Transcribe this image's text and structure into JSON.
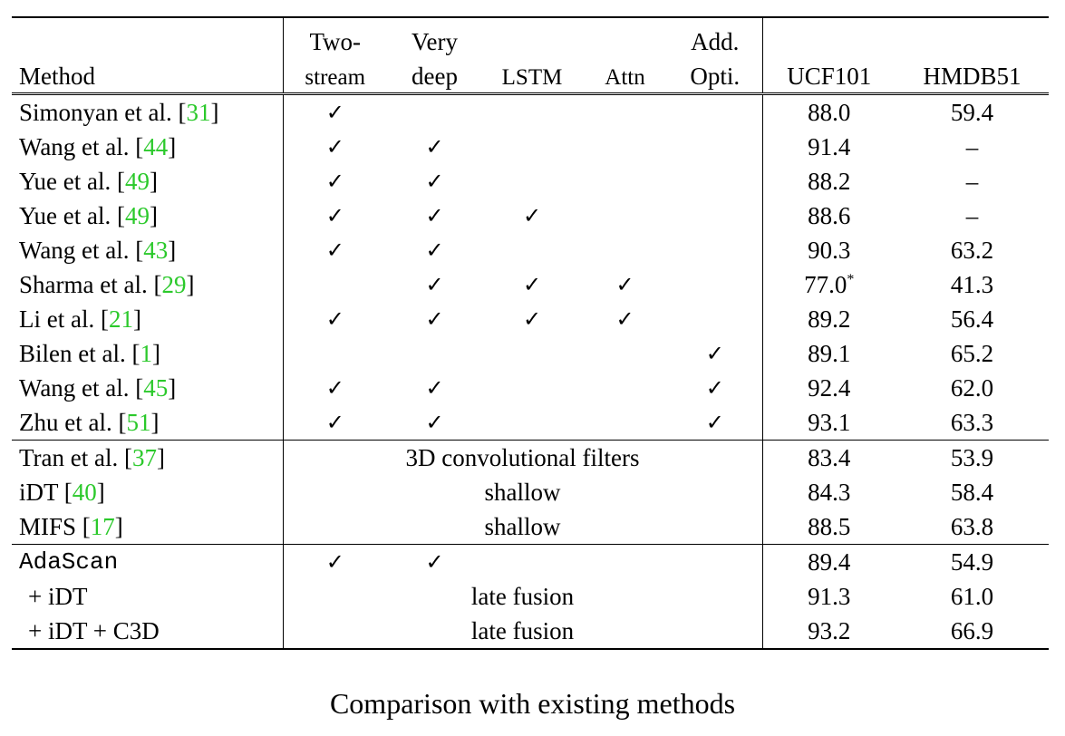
{
  "table": {
    "header_row1": {
      "two_stream": "Two-",
      "very_deep": "Very",
      "add_opti": "Add."
    },
    "header_row2": {
      "method": "Method",
      "two_stream": "stream",
      "very_deep": "deep",
      "lstm": "LSTM",
      "attn": "Attn",
      "add_opti": "Opti.",
      "ucf101": "UCF101",
      "hmdb51": "HMDB51"
    },
    "check_glyph": "✓",
    "section1": [
      {
        "name": "Simonyan et al. [",
        "ref": "31",
        "close": "]",
        "checks": [
          true,
          false,
          false,
          false,
          false
        ],
        "ucf101": "88.0",
        "ucf101_sup": "",
        "hmdb51": "59.4"
      },
      {
        "name": "Wang et al. [",
        "ref": "44",
        "close": "]",
        "checks": [
          true,
          true,
          false,
          false,
          false
        ],
        "ucf101": "91.4",
        "ucf101_sup": "",
        "hmdb51": "–"
      },
      {
        "name": "Yue et al. [",
        "ref": "49",
        "close": "]",
        "checks": [
          true,
          true,
          false,
          false,
          false
        ],
        "ucf101": "88.2",
        "ucf101_sup": "",
        "hmdb51": "–"
      },
      {
        "name": "Yue et al. [",
        "ref": "49",
        "close": "]",
        "checks": [
          true,
          true,
          true,
          false,
          false
        ],
        "ucf101": "88.6",
        "ucf101_sup": "",
        "hmdb51": "–"
      },
      {
        "name": "Wang et al. [",
        "ref": "43",
        "close": "]",
        "checks": [
          true,
          true,
          false,
          false,
          false
        ],
        "ucf101": "90.3",
        "ucf101_sup": "",
        "hmdb51": "63.2"
      },
      {
        "name": "Sharma et al. [",
        "ref": "29",
        "close": "]",
        "checks": [
          false,
          true,
          true,
          true,
          false
        ],
        "ucf101": "77.0",
        "ucf101_sup": "*",
        "hmdb51": "41.3"
      },
      {
        "name": "Li et al. [",
        "ref": "21",
        "close": "]",
        "checks": [
          true,
          true,
          true,
          true,
          false
        ],
        "ucf101": "89.2",
        "ucf101_sup": "",
        "hmdb51": "56.4"
      },
      {
        "name": "Bilen et al. [",
        "ref": "1",
        "close": "]",
        "checks": [
          false,
          false,
          false,
          false,
          true
        ],
        "ucf101": "89.1",
        "ucf101_sup": "",
        "hmdb51": "65.2"
      },
      {
        "name": "Wang et al. [",
        "ref": "45",
        "close": "]",
        "checks": [
          true,
          true,
          false,
          false,
          true
        ],
        "ucf101": "92.4",
        "ucf101_sup": "",
        "hmdb51": "62.0"
      },
      {
        "name": "Zhu et al. [",
        "ref": "51",
        "close": "]",
        "checks": [
          true,
          true,
          false,
          false,
          true
        ],
        "ucf101": "93.1",
        "ucf101_sup": "",
        "hmdb51": "63.3"
      }
    ],
    "section2": [
      {
        "name": "Tran et al. [",
        "ref": "37",
        "close": "]",
        "span_text": "3D convolutional filters",
        "ucf101": "83.4",
        "hmdb51": "53.9"
      },
      {
        "name": "iDT [",
        "ref": "40",
        "close": "]",
        "span_text": "shallow",
        "ucf101": "84.3",
        "hmdb51": "58.4"
      },
      {
        "name": "MIFS [",
        "ref": "17",
        "close": "]",
        "span_text": "shallow",
        "ucf101": "88.5",
        "hmdb51": "63.8"
      }
    ],
    "section3": {
      "adascan": {
        "name": "AdaScan",
        "checks": [
          true,
          true,
          false,
          false,
          false
        ],
        "ucf101": "89.4",
        "hmdb51": "54.9"
      },
      "idt": {
        "name": "+ iDT",
        "span_text": "late fusion",
        "ucf101": "91.3",
        "hmdb51": "61.0"
      },
      "idt_c3d": {
        "name": "+ iDT + C3D",
        "span_text": "late fusion",
        "ucf101": "93.2",
        "hmdb51": "66.9"
      }
    }
  },
  "caption": "Comparison with existing methods"
}
